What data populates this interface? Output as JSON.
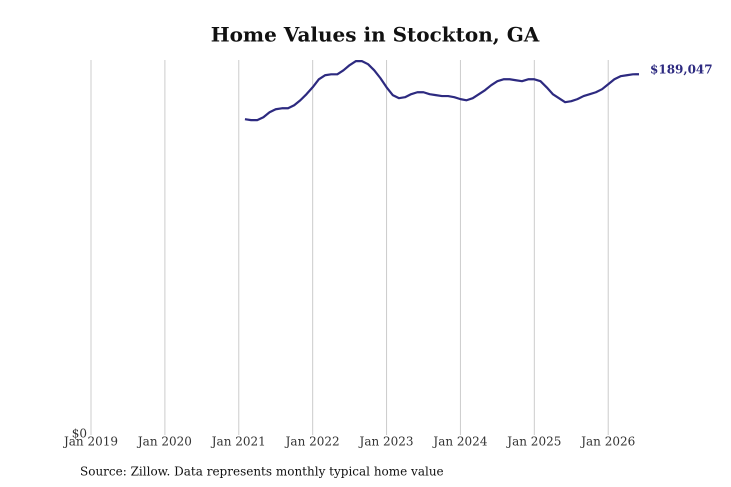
{
  "chart_data": {
    "type": "line",
    "title": "Home Values in Stockton, GA",
    "source": "Source: Zillow. Data represents monthly typical home value",
    "x": [
      "2021-02",
      "2021-03",
      "2021-04",
      "2021-05",
      "2021-06",
      "2021-07",
      "2021-08",
      "2021-09",
      "2021-10",
      "2021-11",
      "2021-12",
      "2022-01",
      "2022-02",
      "2022-03",
      "2022-04",
      "2022-05",
      "2022-06",
      "2022-07",
      "2022-08",
      "2022-09",
      "2022-10",
      "2022-11",
      "2022-12",
      "2023-01",
      "2023-02",
      "2023-03",
      "2023-04",
      "2023-05",
      "2023-06",
      "2023-07",
      "2023-08",
      "2023-09",
      "2023-10",
      "2023-11",
      "2023-12",
      "2024-01",
      "2024-02",
      "2024-03",
      "2024-04",
      "2024-05",
      "2024-06",
      "2024-07",
      "2024-08",
      "2024-09",
      "2024-10",
      "2024-11",
      "2024-12",
      "2025-01",
      "2025-02",
      "2025-03",
      "2025-04",
      "2025-05",
      "2025-06",
      "2025-07",
      "2025-08",
      "2025-09",
      "2025-10",
      "2025-11",
      "2025-12",
      "2026-01",
      "2026-02",
      "2026-03",
      "2026-04",
      "2026-05",
      "2026-06"
    ],
    "series": [
      {
        "name": "Stockton, GA",
        "color": "#2d2a80",
        "values": [
          165500,
          165000,
          165000,
          166500,
          169100,
          170700,
          171200,
          171200,
          172800,
          175400,
          178600,
          182200,
          186400,
          188500,
          189000,
          189000,
          191100,
          193800,
          195900,
          195900,
          194300,
          191100,
          187000,
          182200,
          178100,
          176500,
          177000,
          178600,
          179600,
          179600,
          178600,
          178100,
          177600,
          177600,
          177000,
          176000,
          175400,
          176500,
          178600,
          180700,
          183300,
          185400,
          186400,
          186400,
          185900,
          185400,
          186400,
          186400,
          185400,
          182200,
          178600,
          176500,
          174400,
          174900,
          176000,
          177600,
          178600,
          179600,
          181200,
          183800,
          186400,
          188000,
          188500,
          189000,
          189047
        ],
        "value_labels": [
          null,
          null,
          null,
          null,
          null,
          null,
          null,
          null,
          null,
          null,
          null,
          null,
          null,
          null,
          null,
          null,
          null,
          null,
          null,
          null,
          null,
          null,
          null,
          null,
          null,
          null,
          null,
          null,
          null,
          null,
          null,
          null,
          null,
          null,
          null,
          null,
          null,
          null,
          null,
          null,
          null,
          null,
          null,
          null,
          null,
          null,
          null,
          null,
          null,
          null,
          null,
          null,
          null,
          null,
          null,
          null,
          null,
          null,
          null,
          null,
          null,
          null,
          null,
          null,
          "$189,047"
        ]
      }
    ],
    "xlim": [
      "2019-01",
      "2026-06"
    ],
    "xticks": [
      {
        "value": "2019-01",
        "label": "Jan 2019"
      },
      {
        "value": "2020-01",
        "label": "Jan 2020"
      },
      {
        "value": "2021-01",
        "label": "Jan 2021"
      },
      {
        "value": "2022-01",
        "label": "Jan 2022"
      },
      {
        "value": "2023-01",
        "label": "Jan 2023"
      },
      {
        "value": "2024-01",
        "label": "Jan 2024"
      },
      {
        "value": "2025-01",
        "label": "Jan 2025"
      },
      {
        "value": "2026-01",
        "label": "Jan 2026"
      }
    ],
    "ylim": [
      0,
      196500
    ],
    "yticks": [
      {
        "value": 0,
        "label": "$0"
      }
    ],
    "grid": "x"
  }
}
